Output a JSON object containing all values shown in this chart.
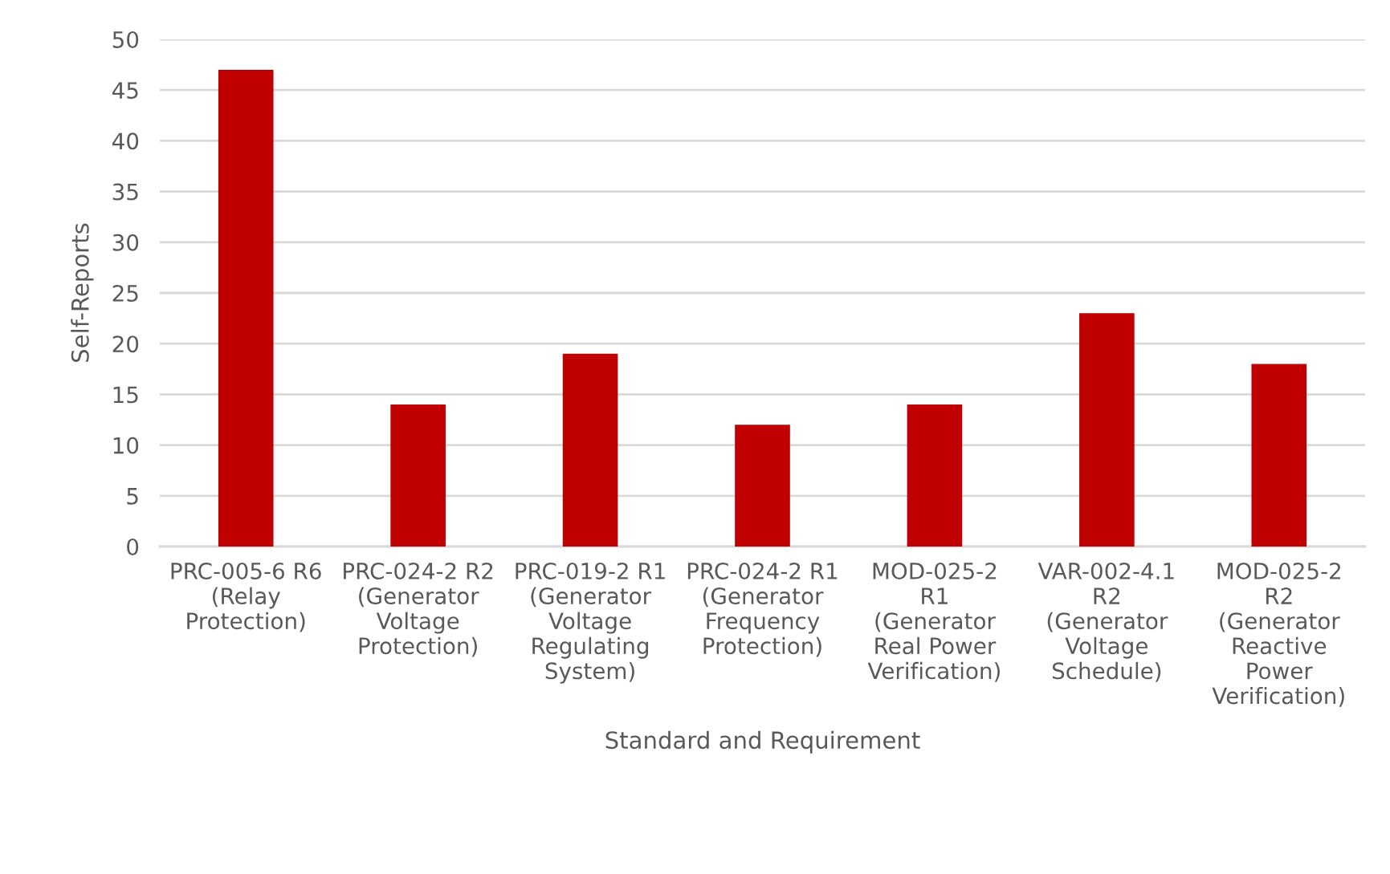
{
  "chart_data": {
    "type": "bar",
    "xlabel": "Standard and Requirement",
    "ylabel": "Self-Reports",
    "categories": [
      "PRC-005-6 R6\n(Relay\nProtection)",
      "PRC-024-2 R2\n(Generator\nVoltage\nProtection)",
      "PRC-019-2 R1\n(Generator\nVoltage\nRegulating\nSystem)",
      "PRC-024-2 R1\n(Generator\nFrequency\nProtection)",
      "MOD-025-2\nR1\n(Generator\nReal Power\nVerification)",
      "VAR-002-4.1\nR2\n(Generator\nVoltage\nSchedule)",
      "MOD-025-2\nR2\n(Generator\nReactive\nPower\nVerification)"
    ],
    "values": [
      47,
      14,
      19,
      12,
      14,
      23,
      18
    ],
    "color": "#c00000",
    "ylim": [
      0,
      50
    ],
    "yticks": [
      0,
      5,
      10,
      15,
      20,
      25,
      30,
      35,
      40,
      45,
      50
    ],
    "grid": "y",
    "legend": false
  }
}
